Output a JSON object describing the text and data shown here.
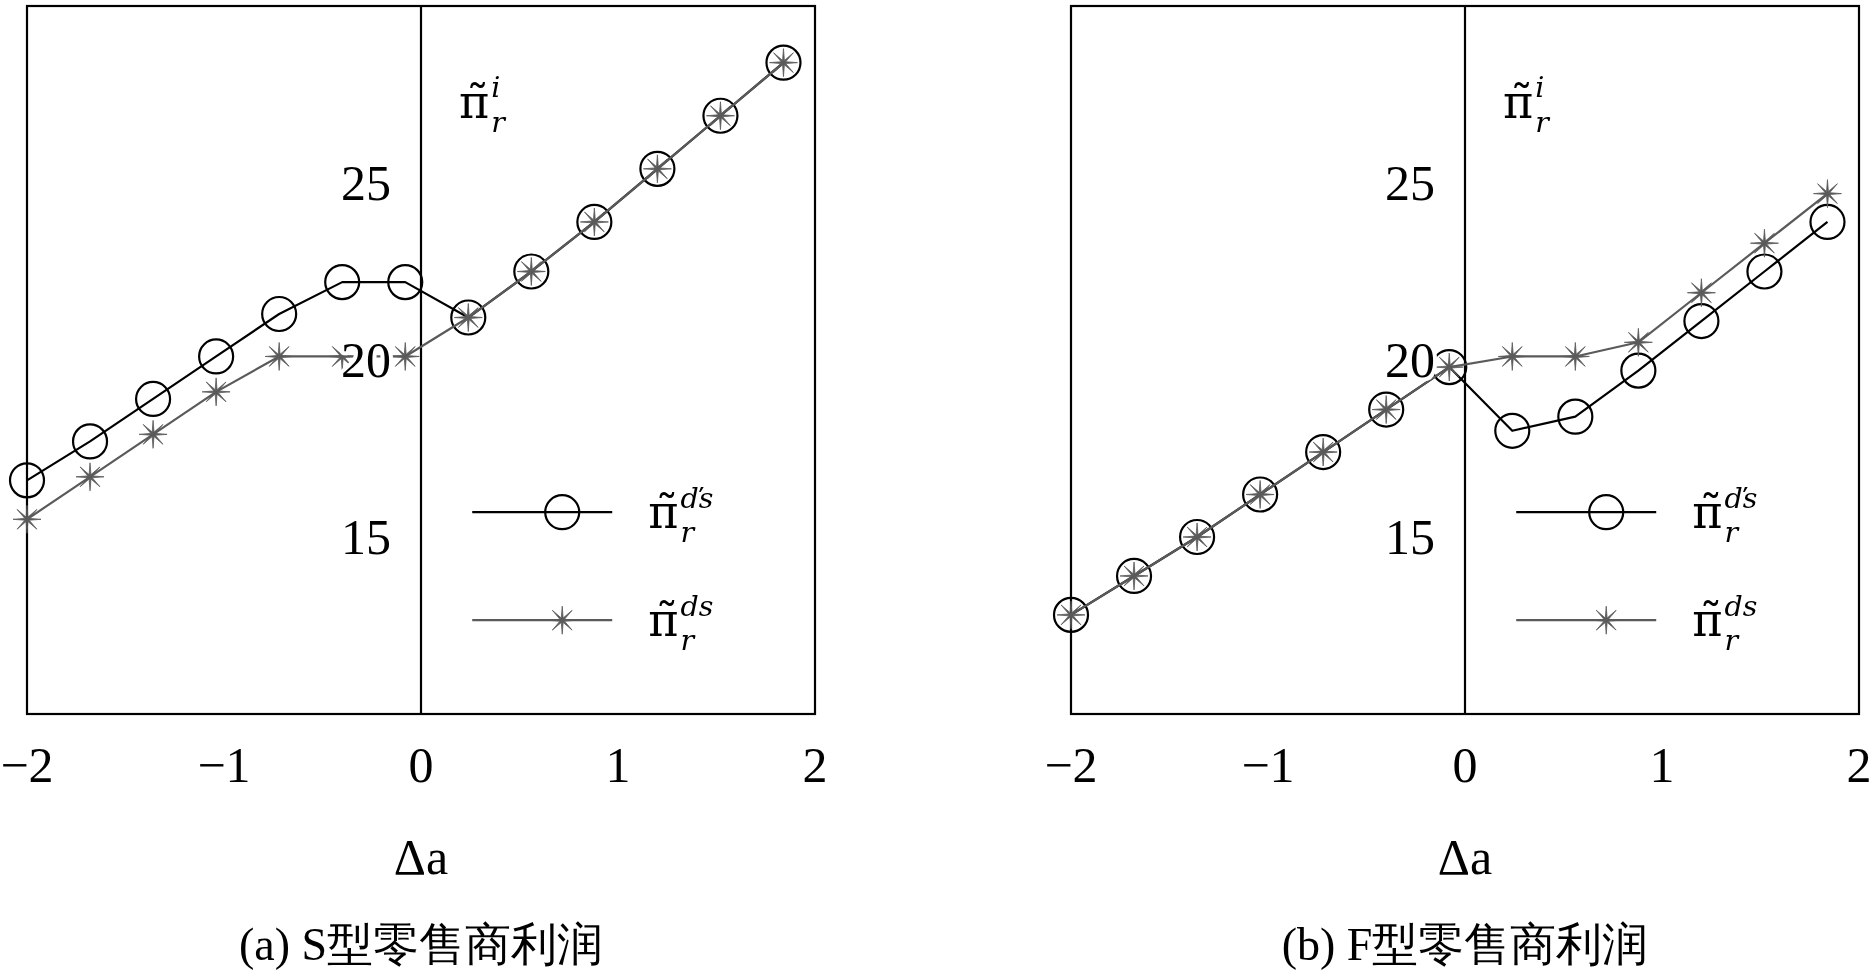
{
  "chart_data": [
    {
      "type": "line",
      "title": "(a) S型零售商利润",
      "xlabel": "Δa",
      "ylabel": "π̃$^{i}$$_{r}$",
      "xlim": [
        -2,
        2
      ],
      "ylim": [
        10,
        30
      ],
      "xticks": [
        -2,
        -1,
        0,
        1,
        2
      ],
      "yticks": [
        15,
        20,
        25
      ],
      "grid": false,
      "legend": "bottom right",
      "x": [
        -2,
        -1.68,
        -1.36,
        -1.04,
        -0.72,
        -0.4,
        -0.08,
        0.24,
        0.56,
        0.88,
        1.2,
        1.52,
        1.84
      ],
      "series": [
        {
          "name": "π̃$^{ďs}$$_{r}$",
          "color": "#000000",
          "marker": "circle",
          "values": [
            16.6,
            17.7,
            18.9,
            20.1,
            21.3,
            22.2,
            22.2,
            21.2,
            22.5,
            23.9,
            25.4,
            26.9,
            28.4
          ]
        },
        {
          "name": "π̃$^{ds}$$_{r}$",
          "color": "#5a5a5a",
          "marker": "star",
          "values": [
            15.5,
            16.7,
            17.9,
            19.1,
            20.1,
            20.1,
            20.1,
            21.2,
            22.5,
            23.9,
            25.4,
            26.9,
            28.4
          ]
        }
      ]
    },
    {
      "type": "line",
      "title": "(b) F型零售商利润",
      "xlabel": "Δa",
      "ylabel": "π̃$^{i}$$_{r}$",
      "xlim": [
        -2,
        2
      ],
      "ylim": [
        10,
        30
      ],
      "xticks": [
        -2,
        -1,
        0,
        1,
        2
      ],
      "yticks": [
        15,
        20,
        25
      ],
      "grid": false,
      "legend": "bottom right",
      "x": [
        -2,
        -1.68,
        -1.36,
        -1.04,
        -0.72,
        -0.4,
        -0.08,
        0.24,
        0.56,
        0.88,
        1.2,
        1.52,
        1.84
      ],
      "series": [
        {
          "name": "π̃$^{ďs}$$_{r}$",
          "color": "#000000",
          "marker": "circle",
          "values": [
            12.8,
            13.9,
            15.0,
            16.2,
            17.4,
            18.6,
            19.8,
            18.0,
            18.4,
            19.7,
            21.1,
            22.5,
            23.9
          ]
        },
        {
          "name": "π̃$^{ds}$$_{r}$",
          "color": "#5a5a5a",
          "marker": "star",
          "values": [
            12.8,
            13.9,
            15.0,
            16.2,
            17.4,
            18.6,
            19.8,
            20.1,
            20.1,
            20.5,
            21.9,
            23.3,
            24.7
          ]
        }
      ]
    }
  ]
}
